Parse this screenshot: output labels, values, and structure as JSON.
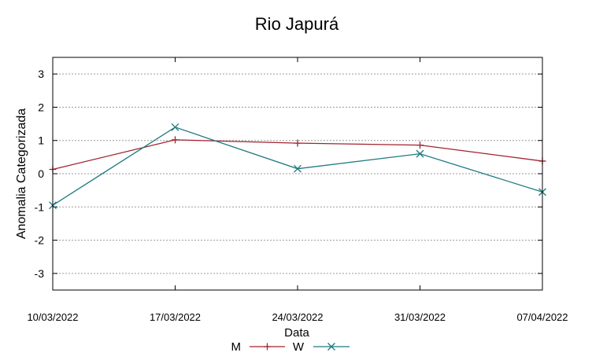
{
  "chart_data": {
    "type": "line",
    "title": "Rio Japurá",
    "xlabel": "Data",
    "ylabel": "Anomalia Categorizada",
    "x": [
      "10/03/2022",
      "17/03/2022",
      "24/03/2022",
      "31/03/2022",
      "07/04/2022"
    ],
    "ylim": [
      -3.5,
      3.5
    ],
    "yticks": [
      "3",
      "2",
      "1",
      "0",
      "-1",
      "-2",
      "-3"
    ],
    "ytick_values": [
      3,
      2,
      1,
      0,
      -1,
      -2,
      -3
    ],
    "grid": true,
    "legend_position": "bottom",
    "series": [
      {
        "name": "M",
        "color": "#a0232e",
        "marker": "plus",
        "values": [
          0.13,
          1.02,
          0.92,
          0.86,
          0.38
        ]
      },
      {
        "name": "W",
        "color": "#1f7a80",
        "marker": "cross",
        "values": [
          -0.95,
          1.4,
          0.15,
          0.6,
          -0.55
        ]
      }
    ]
  }
}
